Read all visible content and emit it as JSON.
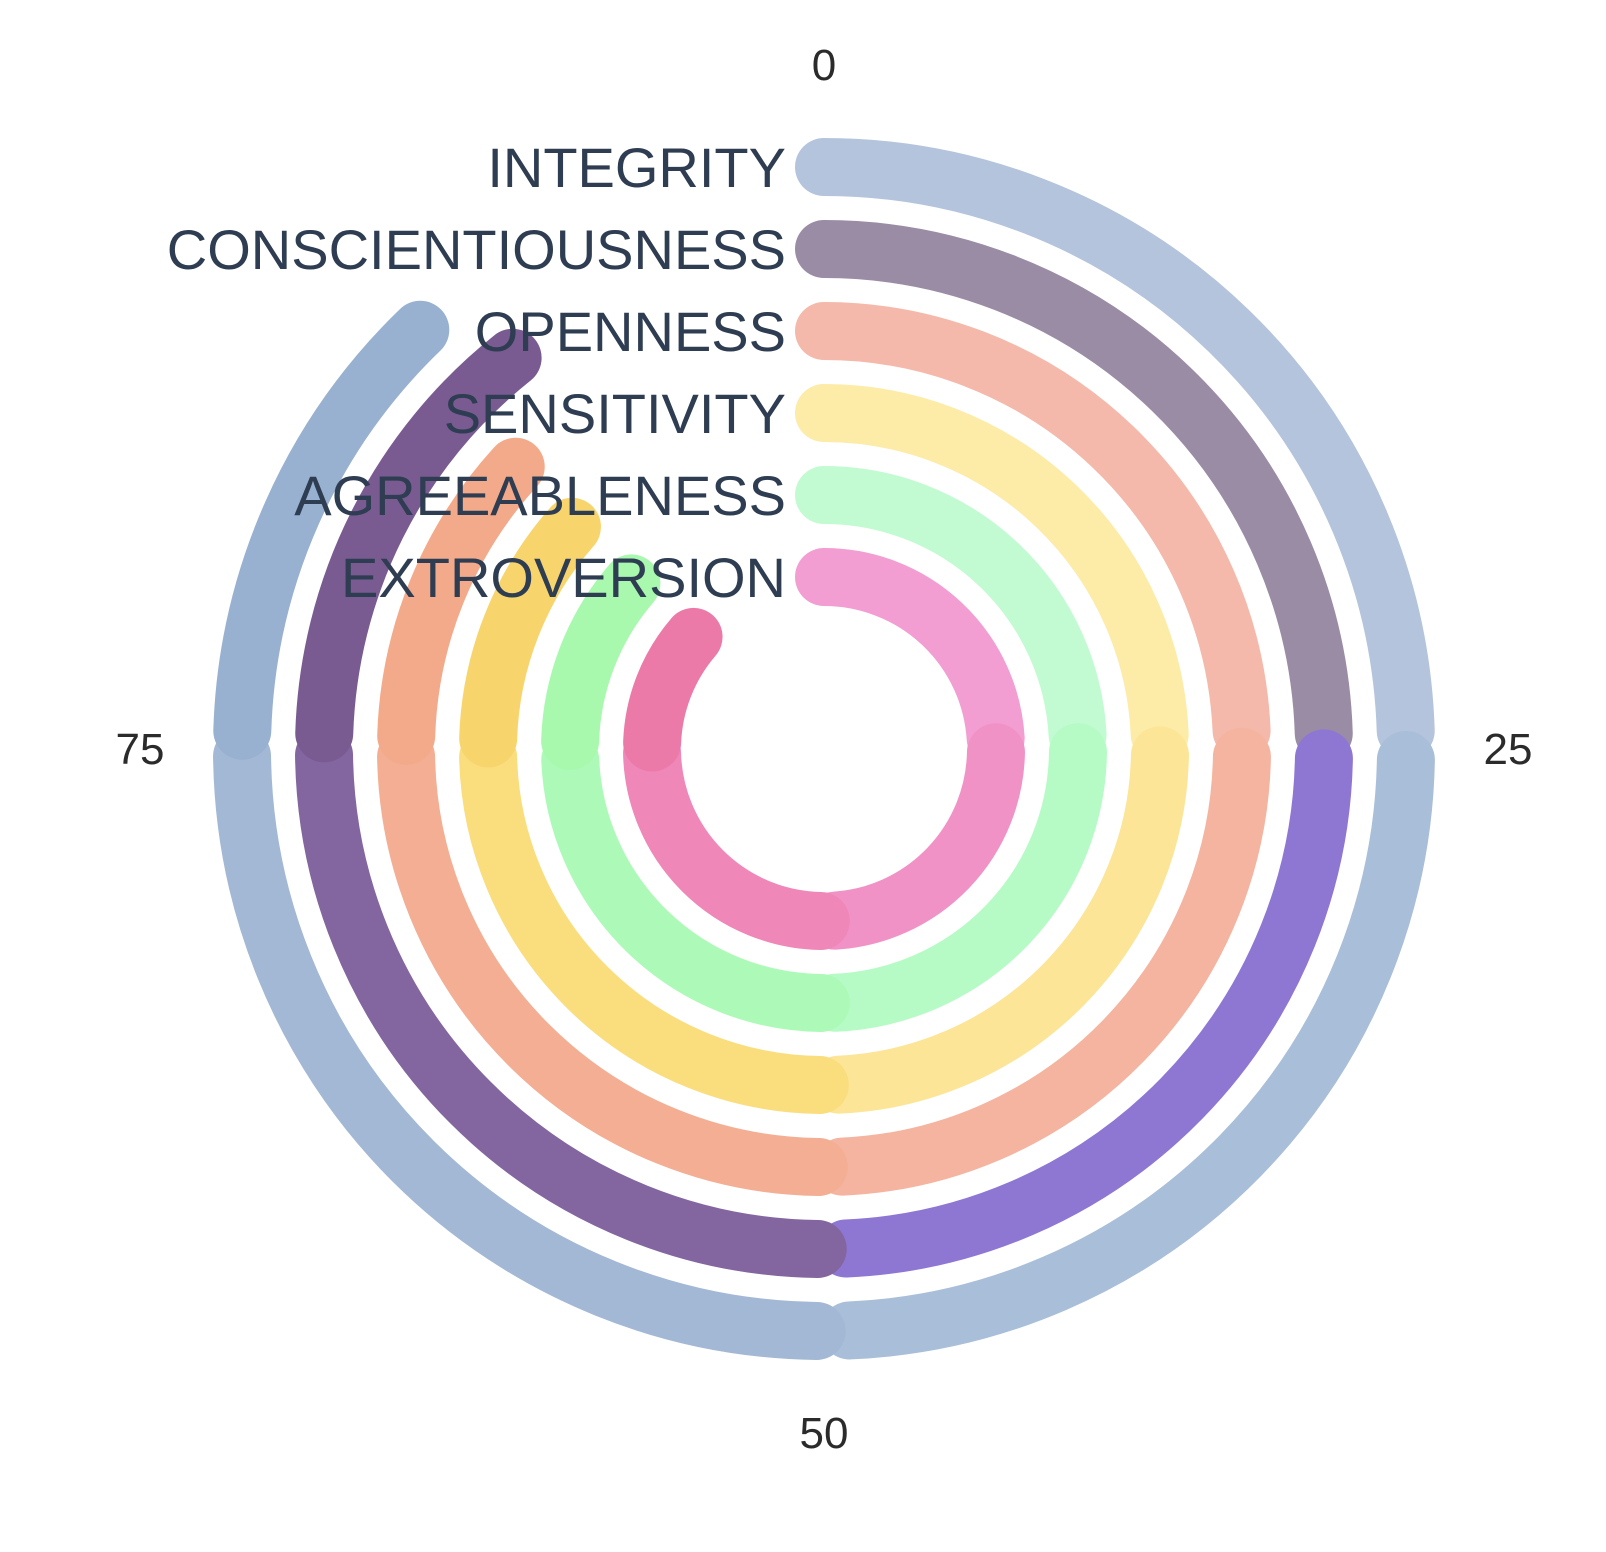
{
  "chart_data": {
    "type": "radial-bar",
    "title": "",
    "scale_max": 100,
    "ticks": [
      {
        "value": 0,
        "label": "0"
      },
      {
        "value": 25,
        "label": "25"
      },
      {
        "value": 50,
        "label": "50"
      },
      {
        "value": 75,
        "label": "75"
      }
    ],
    "categories": [
      {
        "name": "INTEGRITY",
        "segments": [
          {
            "start": 0,
            "end": 24.5,
            "color": "#b4c4dc"
          },
          {
            "start": 25.3,
            "end": 49.3,
            "color": "#a9bed8"
          },
          {
            "start": 50.2,
            "end": 74.8,
            "color": "#a3b8d5"
          },
          {
            "start": 75.5,
            "end": 87.8,
            "color": "#98b1d0"
          }
        ]
      },
      {
        "name": "CONSCIENTIOUSNESS",
        "segments": [
          {
            "start": 0,
            "end": 24.5,
            "color": "#9a8ca5"
          },
          {
            "start": 25.3,
            "end": 49.3,
            "color": "#8e77d3"
          },
          {
            "start": 50.2,
            "end": 74.8,
            "color": "#8365a0"
          },
          {
            "start": 75.5,
            "end": 89.3,
            "color": "#795b92"
          }
        ]
      },
      {
        "name": "OPENNESS",
        "segments": [
          {
            "start": 0,
            "end": 24.3,
            "color": "#f4b9aa"
          },
          {
            "start": 25.3,
            "end": 49.3,
            "color": "#f4b4a0"
          },
          {
            "start": 50.2,
            "end": 74.7,
            "color": "#f3ae93"
          },
          {
            "start": 75.5,
            "end": 86.8,
            "color": "#f3aa8a"
          }
        ]
      },
      {
        "name": "SENSITIVITY",
        "segments": [
          {
            "start": 0,
            "end": 24.3,
            "color": "#fdeba8"
          },
          {
            "start": 25.3,
            "end": 49.3,
            "color": "#fce596"
          },
          {
            "start": 50.2,
            "end": 74.6,
            "color": "#fadd7d"
          },
          {
            "start": 75.5,
            "end": 86.5,
            "color": "#f8d56c"
          }
        ]
      },
      {
        "name": "AGREEABLENESS",
        "segments": [
          {
            "start": 0,
            "end": 24.1,
            "color": "#c2fbd2"
          },
          {
            "start": 25.2,
            "end": 49.3,
            "color": "#b6fbc5"
          },
          {
            "start": 50.2,
            "end": 74.3,
            "color": "#adfab8"
          },
          {
            "start": 75.5,
            "end": 86.3,
            "color": "#a8f9ae"
          }
        ]
      },
      {
        "name": "EXTROVERSION",
        "segments": [
          {
            "start": 0,
            "end": 24.0,
            "color": "#f29ed2"
          },
          {
            "start": 25.3,
            "end": 49.0,
            "color": "#f192c6"
          },
          {
            "start": 50.3,
            "end": 74.6,
            "color": "#ef87b8"
          },
          {
            "start": 75.6,
            "end": 86.3,
            "color": "#ec7aa9"
          }
        ]
      }
    ]
  }
}
